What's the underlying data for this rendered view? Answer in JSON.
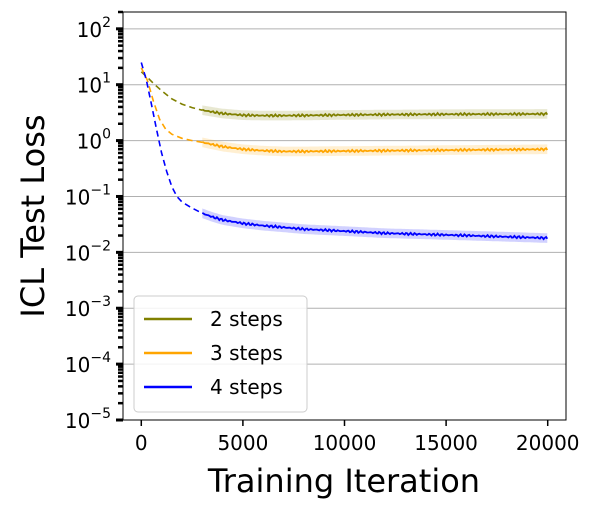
{
  "chart_data": {
    "type": "line",
    "xlabel": "Training Iteration",
    "ylabel": "ICL Test Loss",
    "xlim": [
      -900,
      20900
    ],
    "ylim": [
      1e-05,
      200
    ],
    "yscale": "log",
    "grid": "horizontal",
    "legend_position": "lower-left",
    "xticks": [
      0,
      5000,
      10000,
      15000,
      20000
    ],
    "xtick_labels": [
      "0",
      "5000",
      "10000",
      "15000",
      "20000"
    ],
    "yticks": [
      1e-05,
      0.0001,
      0.001,
      0.01,
      0.1,
      1,
      10,
      100
    ],
    "ytick_labels": [
      {
        "base": "10",
        "exp": "−5"
      },
      {
        "base": "10",
        "exp": "−4"
      },
      {
        "base": "10",
        "exp": "−3"
      },
      {
        "base": "10",
        "exp": "−2"
      },
      {
        "base": "10",
        "exp": "−1"
      },
      {
        "base": "10",
        "exp": "0"
      },
      {
        "base": "10",
        "exp": "1"
      },
      {
        "base": "10",
        "exp": "2"
      }
    ],
    "series": [
      {
        "name": "2 steps",
        "color": "#808000",
        "dashed_until": 3000,
        "x": [
          0,
          300,
          600,
          1000,
          1500,
          2000,
          2500,
          3000,
          4000,
          5000,
          6000,
          7000,
          8000,
          10000,
          12000,
          14000,
          16000,
          18000,
          20000
        ],
        "y": [
          17,
          13.5,
          10.5,
          7.8,
          5.6,
          4.5,
          3.9,
          3.5,
          3.05,
          2.85,
          2.8,
          2.8,
          2.82,
          2.88,
          2.92,
          2.95,
          2.97,
          2.98,
          3.0
        ]
      },
      {
        "name": "3 steps",
        "color": "#ffa500",
        "dashed_until": 3000,
        "x": [
          0,
          300,
          600,
          900,
          1200,
          1500,
          2000,
          2500,
          3000,
          4000,
          5000,
          6000,
          7000,
          8000,
          10000,
          12000,
          14000,
          16000,
          18000,
          20000
        ],
        "y": [
          20,
          12,
          5,
          2.4,
          1.6,
          1.3,
          1.1,
          1.0,
          0.93,
          0.78,
          0.7,
          0.66,
          0.64,
          0.64,
          0.65,
          0.66,
          0.67,
          0.68,
          0.69,
          0.7
        ]
      },
      {
        "name": "4 steps",
        "color": "#0000ff",
        "dashed_until": 3000,
        "x": [
          0,
          250,
          500,
          750,
          1000,
          1250,
          1500,
          1750,
          2000,
          2500,
          3000,
          3500,
          4000,
          5000,
          6000,
          7000,
          8000,
          10000,
          12000,
          14000,
          16000,
          18000,
          20000
        ],
        "y": [
          25,
          12,
          4.5,
          1.6,
          0.6,
          0.28,
          0.15,
          0.1,
          0.08,
          0.062,
          0.05,
          0.043,
          0.038,
          0.033,
          0.03,
          0.028,
          0.026,
          0.024,
          0.022,
          0.021,
          0.02,
          0.019,
          0.018
        ]
      }
    ]
  }
}
